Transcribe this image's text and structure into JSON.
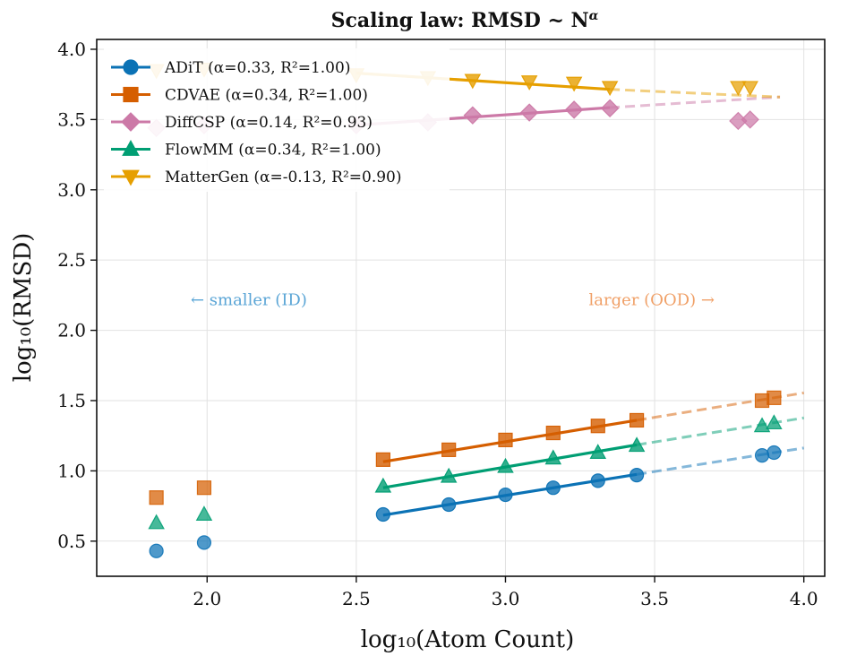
{
  "chart_data": {
    "type": "line",
    "title": "Scaling law: RMSD ~ N",
    "title_superscript": "α",
    "xlabel": "log₁₀(Atom Count)",
    "ylabel": "log₁₀(RMSD)",
    "xlim": [
      1.63,
      4.07
    ],
    "ylim": [
      0.25,
      4.07
    ],
    "xticks": [
      2.0,
      2.5,
      3.0,
      3.5,
      4.0
    ],
    "xtick_labels": [
      "2.0",
      "2.5",
      "3.0",
      "3.5",
      "4.0"
    ],
    "yticks": [
      0.5,
      1.0,
      1.5,
      2.0,
      2.5,
      3.0,
      3.5,
      4.0
    ],
    "ytick_labels": [
      "0.5",
      "1.0",
      "1.5",
      "2.0",
      "2.5",
      "3.0",
      "3.5",
      "4.0"
    ],
    "grid": true,
    "legend_position": "top-left",
    "fit_range": [
      2.6,
      3.44
    ],
    "extrapolation_range": [
      3.44,
      4.0
    ],
    "annotations": [
      {
        "text": "← smaller (ID)",
        "x": 2.14,
        "y": 2.18,
        "color": "#5aa5d6"
      },
      {
        "text": "larger (OOD) →",
        "x": 3.49,
        "y": 2.18,
        "color": "#f0a067"
      }
    ],
    "series": [
      {
        "name": "ADiT",
        "legend": "ADiT (α=0.33, R²=1.00)",
        "color": "#0b72b5",
        "marker": "circle",
        "fit": {
          "x0": 2.59,
          "y0": 0.685,
          "x1": 3.44,
          "y1": 0.975,
          "xend": 4.0,
          "yend": 1.163
        },
        "x": [
          1.83,
          1.99,
          2.59,
          2.81,
          3.0,
          3.16,
          3.31,
          3.44,
          3.86,
          3.9
        ],
        "y": [
          0.43,
          0.49,
          0.69,
          0.76,
          0.83,
          0.88,
          0.93,
          0.97,
          1.11,
          1.13
        ]
      },
      {
        "name": "CDVAE",
        "legend": "CDVAE (α=0.34, R²=1.00)",
        "color": "#d55e00",
        "marker": "square",
        "fit": {
          "x0": 2.59,
          "y0": 1.065,
          "x1": 3.44,
          "y1": 1.36,
          "xend": 4.0,
          "yend": 1.555
        },
        "x": [
          1.83,
          1.99,
          2.59,
          2.81,
          3.0,
          3.16,
          3.31,
          3.44,
          3.86,
          3.9
        ],
        "y": [
          0.81,
          0.88,
          1.08,
          1.15,
          1.22,
          1.27,
          1.32,
          1.36,
          1.5,
          1.52
        ]
      },
      {
        "name": "DiffCSP",
        "legend": "DiffCSP (α=0.14, R²=0.93)",
        "color": "#cc79a7",
        "marker": "diamond",
        "fit": {
          "x0": 2.5,
          "y0": 3.46,
          "x1": 3.35,
          "y1": 3.585,
          "xend": 3.92,
          "yend": 3.66
        },
        "x": [
          1.83,
          1.99,
          2.5,
          2.74,
          2.89,
          3.08,
          3.23,
          3.35,
          3.78,
          3.82
        ],
        "y": [
          3.44,
          3.46,
          3.46,
          3.48,
          3.53,
          3.55,
          3.57,
          3.58,
          3.49,
          3.5
        ]
      },
      {
        "name": "FlowMM",
        "legend": "FlowMM (α=0.34, R²=1.00)",
        "color": "#009e73",
        "marker": "triangle-up",
        "fit": {
          "x0": 2.59,
          "y0": 0.88,
          "x1": 3.44,
          "y1": 1.185,
          "xend": 4.0,
          "yend": 1.377
        },
        "x": [
          1.83,
          1.99,
          2.59,
          2.81,
          3.0,
          3.16,
          3.31,
          3.44,
          3.86,
          3.9
        ],
        "y": [
          0.63,
          0.69,
          0.89,
          0.96,
          1.03,
          1.09,
          1.13,
          1.18,
          1.32,
          1.34
        ]
      },
      {
        "name": "MatterGen",
        "legend": "MatterGen (α=-0.13, R²=0.90)",
        "color": "#e69f00",
        "marker": "triangle-down",
        "fit": {
          "x0": 2.5,
          "y0": 3.83,
          "x1": 3.35,
          "y1": 3.715,
          "xend": 3.92,
          "yend": 3.66
        },
        "x": [
          1.83,
          1.99,
          2.5,
          2.74,
          2.89,
          3.08,
          3.23,
          3.35,
          3.78,
          3.82
        ],
        "y": [
          3.85,
          3.86,
          3.82,
          3.8,
          3.78,
          3.77,
          3.76,
          3.73,
          3.73,
          3.73
        ]
      }
    ]
  }
}
